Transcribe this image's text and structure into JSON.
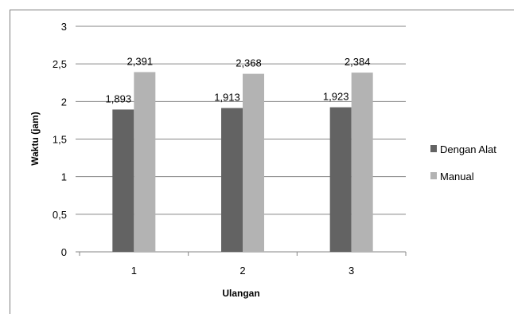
{
  "chart_data": {
    "type": "bar",
    "title": "",
    "xlabel": "Ulangan",
    "ylabel": "Waktu (jam)",
    "categories": [
      "1",
      "2",
      "3"
    ],
    "series": [
      {
        "name": "Dengan Alat",
        "values": [
          1.893,
          1.913,
          1.923
        ],
        "labels": [
          "1,893",
          "1,913",
          "1,923"
        ],
        "color": "#636363"
      },
      {
        "name": "Manual",
        "values": [
          2.391,
          2.368,
          2.384
        ],
        "labels": [
          "2,391",
          "2,368",
          "2,384"
        ],
        "color": "#b3b3b3"
      }
    ],
    "ylim": [
      0,
      3
    ],
    "yticks": [
      0,
      0.5,
      1,
      1.5,
      2,
      2.5,
      3
    ],
    "ytick_labels": [
      "0",
      "0,5",
      "1",
      "1,5",
      "2",
      "2,5",
      "3"
    ],
    "grid": true,
    "legend": "right"
  }
}
